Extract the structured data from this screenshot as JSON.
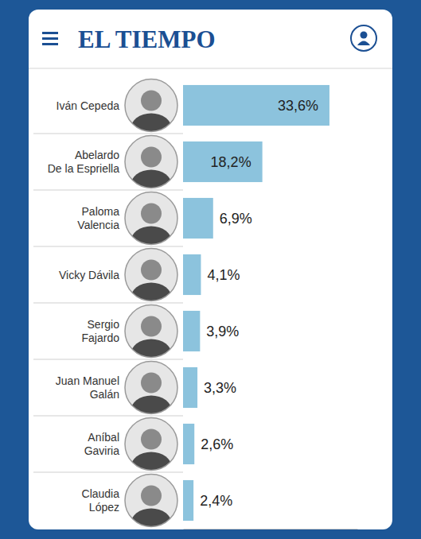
{
  "chart_data": {
    "type": "bar",
    "title": "EL TIEMPO",
    "orientation": "horizontal",
    "categories": [
      "Iván Cepeda",
      "Abelardo\nDe la Espriella",
      "Paloma\nValencia",
      "Vicky Dávila",
      "Sergio\nFajardo",
      "Juan Manuel\nGalán",
      "Aníbal\nGaviria",
      "Claudia\nLópez"
    ],
    "values": [
      33.6,
      18.2,
      6.9,
      4.1,
      3.9,
      3.3,
      2.6,
      2.4
    ],
    "value_labels": [
      "33,6%",
      "18,2%",
      "6,9%",
      "4,1%",
      "3,9%",
      "3,3%",
      "2,6%",
      "2,4%"
    ],
    "color": "#8cc3dd",
    "xlim": [
      0,
      40
    ],
    "xticks": [],
    "data_labels": true,
    "tick_labels": false,
    "grid": false
  }
}
